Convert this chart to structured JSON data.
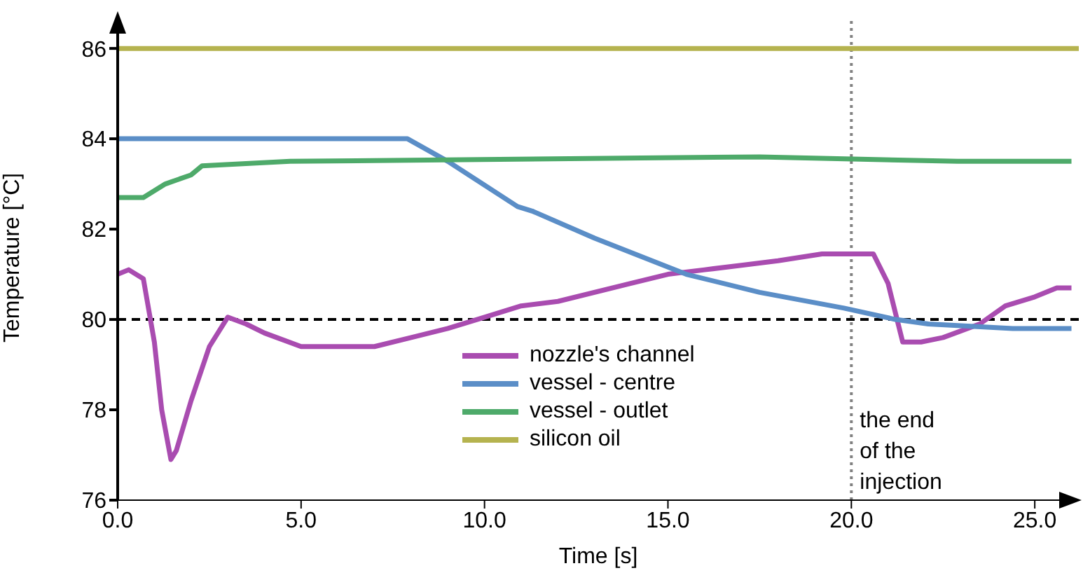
{
  "chart_data": {
    "type": "line",
    "xlabel": "Time [s]",
    "ylabel": "Temperature [°C]",
    "xlim": [
      0,
      26.2
    ],
    "xticks": [
      {
        "value": 0,
        "label": "0.0"
      },
      {
        "value": 5,
        "label": "5.0"
      },
      {
        "value": 10,
        "label": "10.0"
      },
      {
        "value": 15,
        "label": "15.0"
      },
      {
        "value": 20,
        "label": "20.0"
      },
      {
        "value": 25,
        "label": "25.0"
      }
    ],
    "ylim": [
      76,
      86.7
    ],
    "yticks": [
      76,
      78,
      80,
      82,
      84,
      86
    ],
    "grid": false,
    "legend": "bottom",
    "marker": "none",
    "line_style": "solid",
    "ref_lines": [
      {
        "axis": "y",
        "value": 80,
        "color": "#000000",
        "line_style": "dashed"
      },
      {
        "axis": "x",
        "value": 20,
        "label": "the end of the injection",
        "color": "#808080",
        "line_style": "dotted"
      }
    ],
    "series": [
      {
        "name": "nozzle's channel",
        "color": "#a94cb0",
        "x": [
          0,
          0.3,
          0.7,
          1.0,
          1.2,
          1.45,
          1.6,
          2.0,
          2.5,
          3.0,
          3.5,
          4,
          5,
          7,
          8,
          9,
          10,
          11,
          12,
          14,
          15,
          16,
          17,
          18,
          19.2,
          20.6,
          21.0,
          21.4,
          21.9,
          22.5,
          23.5,
          24.2,
          25,
          25.6,
          26
        ],
        "values": [
          81.0,
          81.1,
          80.9,
          79.5,
          78.0,
          76.9,
          77.1,
          78.2,
          79.4,
          80.05,
          79.9,
          79.7,
          79.4,
          79.4,
          79.6,
          79.8,
          80.05,
          80.3,
          80.4,
          80.8,
          81.0,
          81.1,
          81.2,
          81.3,
          81.45,
          81.45,
          80.8,
          79.5,
          79.5,
          79.6,
          79.9,
          80.3,
          80.5,
          80.7,
          80.7
        ]
      },
      {
        "name": "vessel - centre",
        "color": "#5b8ec7",
        "x": [
          0,
          7.9,
          9,
          10.9,
          11.3,
          13,
          15.5,
          17.5,
          19.8,
          21.2,
          22.1,
          24.4,
          26
        ],
        "values": [
          84.0,
          84.0,
          83.5,
          82.5,
          82.4,
          81.8,
          81.0,
          80.6,
          80.25,
          80.0,
          79.9,
          79.8,
          79.8
        ]
      },
      {
        "name": "vessel - outlet",
        "color": "#4eaa6a",
        "x": [
          0,
          0.7,
          1.3,
          2.0,
          2.3,
          4.7,
          17.5,
          22.9,
          26
        ],
        "values": [
          82.7,
          82.7,
          83.0,
          83.2,
          83.4,
          83.5,
          83.6,
          83.5,
          83.5
        ]
      },
      {
        "name": "silicon oil",
        "color": "#b5b34f",
        "x": [
          0,
          26.2
        ],
        "values": [
          86,
          86
        ]
      }
    ]
  }
}
